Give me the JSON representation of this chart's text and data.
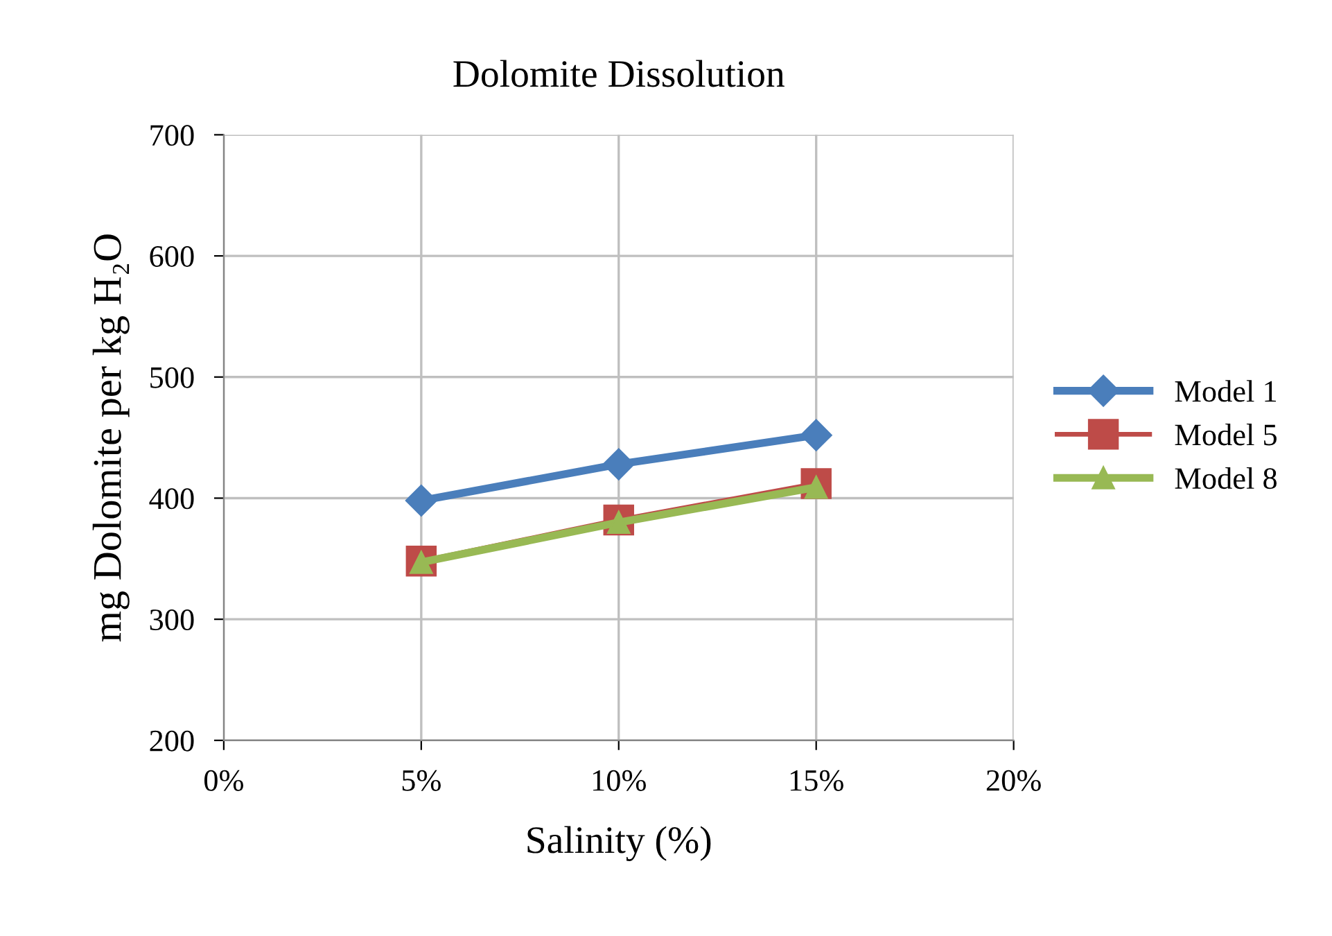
{
  "chart_data": {
    "type": "line",
    "title": "Dolomite Dissolution",
    "xlabel": "Salinity (%)",
    "ylabel": "mg Dolomite per kg H₂O",
    "x": [
      5,
      10,
      15
    ],
    "series": [
      {
        "name": "Model 1",
        "color": "#4a7ebb",
        "marker": "diamond",
        "values": [
          398,
          428,
          452
        ]
      },
      {
        "name": "Model 5",
        "color": "#be4b48",
        "marker": "square",
        "values": [
          348,
          382,
          412
        ]
      },
      {
        "name": "Model 8",
        "color": "#98b954",
        "marker": "triangle",
        "values": [
          347,
          380,
          409
        ]
      }
    ],
    "xlim": [
      0,
      20
    ],
    "xticks": [
      {
        "value": 0,
        "label": "0%"
      },
      {
        "value": 5,
        "label": "5%"
      },
      {
        "value": 10,
        "label": "10%"
      },
      {
        "value": 15,
        "label": "15%"
      },
      {
        "value": 20,
        "label": "20%"
      }
    ],
    "ylim": [
      200,
      700
    ],
    "yticks": [
      200,
      300,
      400,
      500,
      600,
      700
    ],
    "grid": true,
    "legend": "right",
    "line_style": "solid"
  }
}
